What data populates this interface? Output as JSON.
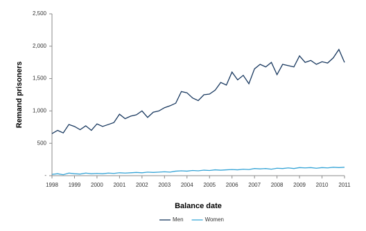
{
  "chart_data": {
    "type": "line",
    "y_label": "Remand prisoners",
    "x_label": "Balance date",
    "x": [
      1998,
      1998.25,
      1998.5,
      1998.75,
      1999,
      1999.25,
      1999.5,
      1999.75,
      2000,
      2000.25,
      2000.5,
      2000.75,
      2001,
      2001.25,
      2001.5,
      2001.75,
      2002,
      2002.25,
      2002.5,
      2002.75,
      2003,
      2003.25,
      2003.5,
      2003.75,
      2004,
      2004.25,
      2004.5,
      2004.75,
      2005,
      2005.25,
      2005.5,
      2005.75,
      2006,
      2006.25,
      2006.5,
      2006.75,
      2007,
      2007.25,
      2007.5,
      2007.75,
      2008,
      2008.25,
      2008.5,
      2008.75,
      2009,
      2009.25,
      2009.5,
      2009.75,
      2010,
      2010.25,
      2010.5,
      2010.75,
      2011
    ],
    "series": [
      {
        "name": "Men",
        "color": "#17375e",
        "values": [
          650,
          700,
          660,
          790,
          760,
          710,
          770,
          700,
          800,
          760,
          790,
          820,
          950,
          880,
          920,
          940,
          1000,
          900,
          980,
          1000,
          1050,
          1080,
          1120,
          1300,
          1280,
          1200,
          1160,
          1250,
          1260,
          1320,
          1440,
          1400,
          1600,
          1480,
          1550,
          1420,
          1650,
          1720,
          1680,
          1750,
          1560,
          1720,
          1700,
          1680,
          1850,
          1750,
          1780,
          1720,
          1760,
          1740,
          1820,
          1950,
          1750
        ]
      },
      {
        "name": "Women",
        "color": "#33a3d6",
        "values": [
          20,
          30,
          15,
          40,
          30,
          25,
          40,
          30,
          35,
          30,
          40,
          35,
          45,
          40,
          45,
          50,
          45,
          55,
          50,
          55,
          60,
          55,
          70,
          75,
          70,
          80,
          75,
          85,
          80,
          90,
          85,
          90,
          95,
          90,
          100,
          95,
          110,
          105,
          110,
          100,
          115,
          110,
          120,
          110,
          125,
          120,
          125,
          115,
          125,
          120,
          130,
          125,
          130
        ]
      }
    ],
    "xlim": [
      1998,
      2011
    ],
    "xticks": [
      1998,
      1999,
      2000,
      2001,
      2002,
      2003,
      2004,
      2005,
      2006,
      2007,
      2008,
      2009,
      2010,
      2011
    ],
    "ylim": [
      0,
      2500
    ],
    "yticks": [
      {
        "value": 0,
        "label": "-"
      },
      500,
      {
        "value": 1000,
        "label": "1,000"
      },
      {
        "value": 1500,
        "label": "1,500"
      },
      {
        "value": 2000,
        "label": "2,000"
      },
      {
        "value": 2500,
        "label": "2,500"
      }
    ],
    "legend": "bottom"
  }
}
